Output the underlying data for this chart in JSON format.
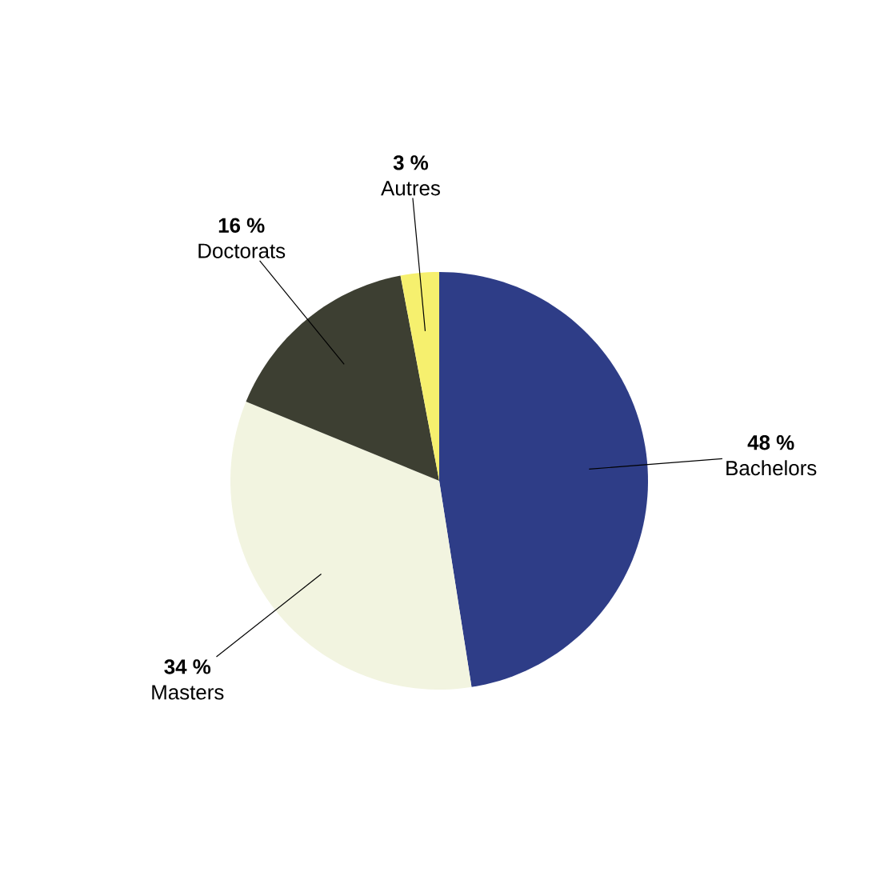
{
  "chart_data": {
    "type": "pie",
    "categories": [
      "Bachelors",
      "Masters",
      "Doctorats",
      "Autres"
    ],
    "values": [
      48,
      34,
      16,
      3
    ],
    "colors": [
      "#2e3d87",
      "#f2f4e0",
      "#3d3f32",
      "#f6f06e"
    ],
    "value_labels": [
      "48 %",
      "34 %",
      "16 %",
      "3 %"
    ]
  }
}
